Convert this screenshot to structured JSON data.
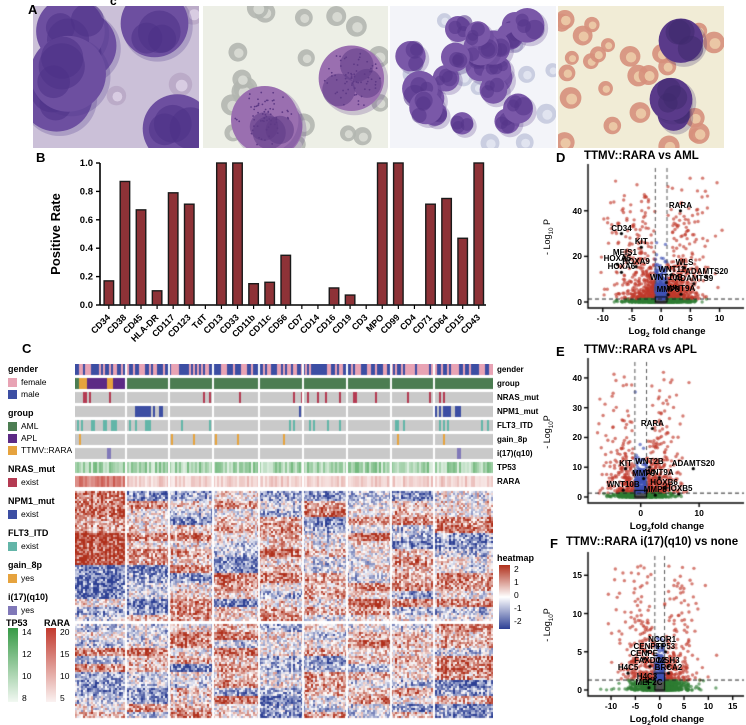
{
  "figure": {
    "top_fragment": "c"
  },
  "panel_a": {
    "label": "A",
    "images": [
      {
        "name": "bone-marrow-smear-1",
        "bg": "#cbc0d8",
        "rbc": {
          "color": "#b9a8c6",
          "center": "#d9cde4",
          "count": 6,
          "rMin": 9,
          "rMax": 13
        },
        "blast": {
          "color": "#6d4fa0",
          "nucleus": "#4c3286",
          "count": 6,
          "rMin": 24,
          "rMax": 38,
          "speckle": false
        }
      },
      {
        "name": "bone-marrow-smear-2",
        "bg": "#edefe6",
        "rbc": {
          "color": "#b3b6b0",
          "center": "#d8dad4",
          "count": 22,
          "rMin": 8,
          "rMax": 12
        },
        "blast": {
          "color": "#9a6fb0",
          "nucleus": "#5e3a86",
          "count": 3,
          "rMin": 26,
          "rMax": 34,
          "speckle": true
        }
      },
      {
        "name": "bone-marrow-smear-3",
        "bg": "#f3f4f9",
        "rbc": {
          "color": "#c5cade",
          "center": "#e2e5f0",
          "count": 14,
          "rMin": 7,
          "rMax": 10
        },
        "blast": {
          "color": "#7a58a8",
          "nucleus": "#533488",
          "count": 24,
          "rMin": 11,
          "rMax": 18,
          "speckle": false
        }
      },
      {
        "name": "peripheral-blood-smear-4",
        "bg": "#f1ecd6",
        "rbc": {
          "color": "#d6907c",
          "center": "#ecc9a6",
          "count": 28,
          "rMin": 7,
          "rMax": 11
        },
        "blast": {
          "color": "#5a3a8a",
          "nucleus": "#3f2a6e",
          "count": 4,
          "rMin": 14,
          "rMax": 24,
          "speckle": false,
          "biasX": 0.55
        }
      }
    ]
  },
  "panel_b": {
    "label": "B"
  },
  "panel_c": {
    "label": "C"
  },
  "panel_d": {
    "label": "D"
  },
  "panel_e": {
    "label": "E"
  },
  "panel_f": {
    "label": "F"
  },
  "chart_data": [
    {
      "type": "bar",
      "title": "",
      "ylabel": "Positive Rate",
      "xlabel": "",
      "ylim": [
        0,
        1.0
      ],
      "yticks": [
        "0.0",
        "0.2",
        "0.4",
        "0.6",
        "0.8",
        "1.0"
      ],
      "bar_color": "#8e3237",
      "bar_edge": "#1a1a1a",
      "categories": [
        "CD34",
        "CD38",
        "CD45",
        "HLA-DR",
        "CD117",
        "CD123",
        "TdT",
        "CD13",
        "CD33",
        "CD11b",
        "CD11c",
        "CD56",
        "CD7",
        "CD14",
        "CD16",
        "CD19",
        "CD3",
        "MPO",
        "CD99",
        "CD4",
        "CD71",
        "CD64",
        "CD15",
        "CD43"
      ],
      "values": [
        0.17,
        0.87,
        0.67,
        0.1,
        0.79,
        0.71,
        0,
        1.0,
        1.0,
        0.15,
        0.16,
        0.35,
        0,
        0,
        0.12,
        0.07,
        0,
        1.0,
        1.0,
        0,
        0.71,
        0.75,
        0.47,
        1.0
      ]
    },
    {
      "type": "heatmap",
      "title": "heatmap",
      "colorbar_ticks": [
        "2",
        "1",
        "0",
        "-1",
        "-2"
      ],
      "annotation_rows": [
        "gender",
        "group",
        "NRAS_mut",
        "NPM1_mut",
        "FLT3_ITD",
        "gain_8p",
        "i(17)(q10)",
        "TP53",
        "RARA"
      ],
      "legend_sections": [
        {
          "title": "gender",
          "items": [
            {
              "label": "female",
              "color": "#e8a3b4"
            },
            {
              "label": "male",
              "color": "#3c4ea3"
            }
          ]
        },
        {
          "title": "group",
          "items": [
            {
              "label": "AML",
              "color": "#4c7d52"
            },
            {
              "label": "APL",
              "color": "#5c2a85"
            },
            {
              "label": "TTMV::RARA",
              "color": "#e6a33e"
            }
          ]
        },
        {
          "title": "NRAS_mut",
          "items": [
            {
              "label": "exist",
              "color": "#b43a52"
            }
          ]
        },
        {
          "title": "NPM1_mut",
          "items": [
            {
              "label": "exist",
              "color": "#3c4ea3"
            }
          ]
        },
        {
          "title": "FLT3_ITD",
          "items": [
            {
              "label": "exist",
              "color": "#63b5a8"
            }
          ]
        },
        {
          "title": "gain_8p",
          "items": [
            {
              "label": "yes",
              "color": "#e6a33e"
            }
          ]
        },
        {
          "title": "i(17)(q10)",
          "items": [
            {
              "label": "yes",
              "color": "#8078b8"
            }
          ]
        }
      ],
      "colorbars": [
        {
          "title": "TP53",
          "ticks": [
            "14",
            "12",
            "10",
            "8"
          ],
          "from": "#379a46",
          "to": "#f2f8f2"
        },
        {
          "title": "RARA",
          "ticks": [
            "20",
            "15",
            "10",
            "5"
          ],
          "from": "#c23a2e",
          "to": "#faf2f1"
        }
      ],
      "scale": {
        "max_color": "#b0301c",
        "mid_color": "#ffffff",
        "min_color": "#2c3f94",
        "absent_color": "#c9c9c9"
      },
      "group_row_segments": [
        {
          "label": "AML",
          "frac": 0.006
        },
        {
          "label": "TTMV::RARA",
          "frac": 0.02
        },
        {
          "label": "APL",
          "frac": 0.05
        },
        {
          "label": "TTMV::RARA",
          "frac": 0.012
        },
        {
          "label": "APL",
          "frac": 0.034
        },
        {
          "label": "AML",
          "frac": 0.878
        }
      ],
      "column_block_bounds": [
        0,
        0.122,
        0.225,
        0.33,
        0.44,
        0.545,
        0.65,
        0.755,
        0.86,
        1.0
      ]
    },
    {
      "type": "scatter",
      "title": "TTMV::RARA vs AML",
      "xlabel_pre": "Log",
      "xlabel_sub": "2",
      "xlabel_post": " fold change",
      "ylabel_pre": "- Log",
      "ylabel_sub": "10",
      "ylabel_post": " P",
      "xdomain": [
        -11.5,
        13.5
      ],
      "ydomain": [
        0,
        57
      ],
      "xticks": [
        "-10",
        "-5",
        "0",
        "5",
        "10"
      ],
      "xtick_vals": [
        -10,
        -5,
        0,
        5,
        10
      ],
      "yticks": [
        "0",
        "20",
        "40"
      ],
      "ytick_vals": [
        0,
        20,
        40
      ],
      "fc_threshold": 1,
      "p_threshold": 1.3,
      "colors": {
        "up_down": "#c0392b",
        "center": "#3f51b5",
        "low": "#2e7d32",
        "ns": "#555555"
      },
      "genes": [
        {
          "name": "RARA",
          "x": 3.3,
          "y": 40
        },
        {
          "name": "CD34",
          "x": -6.8,
          "y": 30
        },
        {
          "name": "KIT",
          "x": -3.4,
          "y": 24
        },
        {
          "name": "MEIS1",
          "x": -6.2,
          "y": 19.5
        },
        {
          "name": "HOXA5",
          "x": -7.5,
          "y": 16.5
        },
        {
          "name": "HOXA9",
          "x": -4.3,
          "y": 15.5
        },
        {
          "name": "HOXA6",
          "x": -6.8,
          "y": 13
        },
        {
          "name": "WLS",
          "x": 4.0,
          "y": 15
        },
        {
          "name": "WNT11",
          "x": 1.8,
          "y": 12
        },
        {
          "name": "ADAMTS20",
          "x": 7.8,
          "y": 11
        },
        {
          "name": "WNT10B",
          "x": 0.9,
          "y": 8.5
        },
        {
          "name": "ADAMTS9",
          "x": 5.6,
          "y": 8
        },
        {
          "name": "MMP9",
          "x": 1.2,
          "y": 3.2
        },
        {
          "name": "WNT9A",
          "x": 3.4,
          "y": 3.4
        }
      ]
    },
    {
      "type": "scatter",
      "title": "TTMV::RARA vs APL",
      "xlabel_pre": "Log",
      "xlabel_sub": "2",
      "xlabel_post": "fold change",
      "ylabel_pre": "- Log",
      "ylabel_sub": "10",
      "ylabel_post": "P",
      "xdomain": [
        -8,
        17
      ],
      "ydomain": [
        0,
        44
      ],
      "xticks": [
        "0",
        "10"
      ],
      "xtick_vals": [
        0,
        10
      ],
      "yticks": [
        "0",
        "10",
        "20",
        "30",
        "40"
      ],
      "ytick_vals": [
        0,
        10,
        20,
        30,
        40
      ],
      "fc_threshold": 1,
      "p_threshold": 1.3,
      "colors": {
        "up_down": "#c0392b",
        "center": "#3f51b5",
        "low": "#2e7d32",
        "ns": "#555555"
      },
      "genes": [
        {
          "name": "RARA",
          "x": 2.0,
          "y": 23
        },
        {
          "name": "KIT",
          "x": -2.6,
          "y": 9.5
        },
        {
          "name": "WNT2B",
          "x": 1.5,
          "y": 10
        },
        {
          "name": "ADAMTS20",
          "x": 9.0,
          "y": 9.5
        },
        {
          "name": "MMP9",
          "x": 0.5,
          "y": 6.2
        },
        {
          "name": "WNT9A",
          "x": 3.2,
          "y": 6.5
        },
        {
          "name": "WNT10B",
          "x": -3.0,
          "y": 2.3
        },
        {
          "name": "HOXB6",
          "x": 4.0,
          "y": 3.0
        },
        {
          "name": "MMP8",
          "x": 2.5,
          "y": 0.6
        },
        {
          "name": "HOXB5",
          "x": 6.5,
          "y": 1.0
        }
      ]
    },
    {
      "type": "scatter",
      "title": "TTMV::RARA i(17)(q10) vs none",
      "xlabel_pre": "Log",
      "xlabel_sub": "2",
      "xlabel_post": "fold change",
      "ylabel_pre": "- Log",
      "ylabel_sub": "10",
      "ylabel_post": "P",
      "xdomain": [
        -13.5,
        16.5
      ],
      "ydomain": [
        0,
        17
      ],
      "xticks": [
        "-10",
        "-5",
        "0",
        "5",
        "10",
        "15"
      ],
      "xtick_vals": [
        -10,
        -5,
        0,
        5,
        10,
        15
      ],
      "yticks": [
        "0",
        "5",
        "10",
        "15"
      ],
      "ytick_vals": [
        0,
        5,
        10,
        15
      ],
      "fc_threshold": 1,
      "p_threshold": 1.3,
      "colors": {
        "up_down": "#c0392b",
        "center": "#3f51b5",
        "low": "#2e7d32",
        "ns": "#555555"
      },
      "genes": [
        {
          "name": "NCOR1",
          "x": 0.5,
          "y": 5.9
        },
        {
          "name": "CENPF",
          "x": -2.6,
          "y": 5.0
        },
        {
          "name": "TP53",
          "x": 1.2,
          "y": 5.0
        },
        {
          "name": "CENPE",
          "x": -3.2,
          "y": 4.1
        },
        {
          "name": "FAXDC2",
          "x": -2.0,
          "y": 3.1
        },
        {
          "name": "MSH3",
          "x": 1.8,
          "y": 3.1
        },
        {
          "name": "H4C5",
          "x": -6.5,
          "y": 2.2
        },
        {
          "name": "BRCA2",
          "x": 1.8,
          "y": 2.2
        },
        {
          "name": "H4C3",
          "x": -2.6,
          "y": 1.1
        },
        {
          "name": "MEF2C",
          "x": -2.2,
          "y": 0.3
        }
      ]
    }
  ]
}
